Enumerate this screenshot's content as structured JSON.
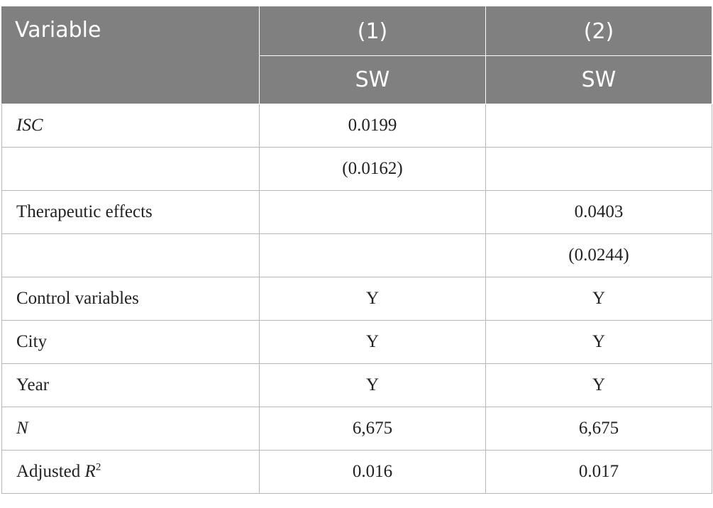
{
  "header": {
    "variable_label": "Variable",
    "columns": [
      {
        "number": "(1)",
        "dep_var": "SW"
      },
      {
        "number": "(2)",
        "dep_var": "SW"
      }
    ]
  },
  "rows": [
    {
      "label": "ISC",
      "values": [
        "0.0199",
        ""
      ]
    },
    {
      "label": "",
      "values": [
        "(0.0162)",
        ""
      ]
    },
    {
      "label": "Therapeutic effects",
      "values": [
        "",
        "0.0403"
      ]
    },
    {
      "label": "",
      "values": [
        "",
        "(0.0244)"
      ]
    },
    {
      "label": "Control variables",
      "values": [
        "Y",
        "Y"
      ]
    },
    {
      "label": "City",
      "values": [
        "Y",
        "Y"
      ]
    },
    {
      "label": "Year",
      "values": [
        "Y",
        "Y"
      ]
    },
    {
      "label": "N",
      "values": [
        "6,675",
        "6,675"
      ]
    },
    {
      "label": "Adjusted R",
      "label_sup": "2",
      "values": [
        "0.016",
        "0.017"
      ]
    }
  ]
}
